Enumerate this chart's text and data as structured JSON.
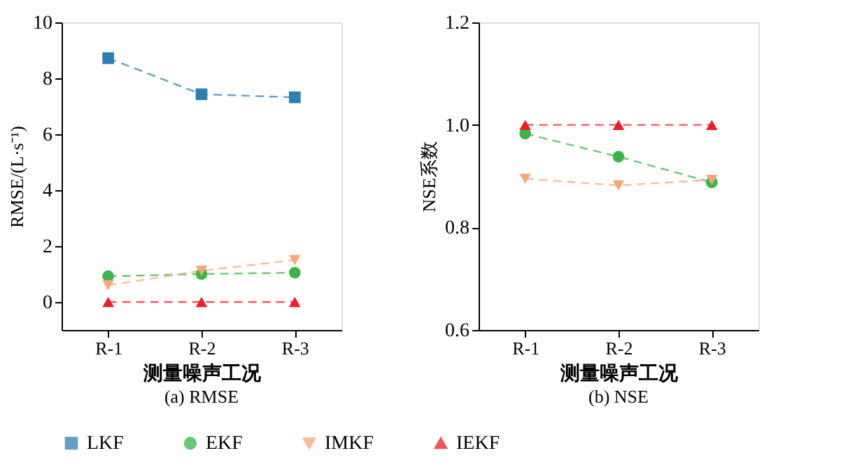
{
  "chart_data": [
    {
      "type": "line",
      "title": "(a) RMSE",
      "xlabel": "测量噪声工况",
      "ylabel": "RMSE/(L·s⁻¹)",
      "categories": [
        "R-1",
        "R-2",
        "R-3"
      ],
      "ylim": [
        -1,
        10
      ],
      "yticks": [
        0,
        2,
        4,
        6,
        8,
        10
      ],
      "grid": false,
      "legend": "bottom",
      "line_style": "dashed",
      "series": [
        {
          "name": "LKF",
          "color": "#2e7fb0",
          "marker": "square",
          "values": [
            8.72,
            7.43,
            7.32
          ]
        },
        {
          "name": "EKF",
          "color": "#3cb44a",
          "marker": "circle",
          "values": [
            0.92,
            1.0,
            1.05
          ]
        },
        {
          "name": "IMKF",
          "color": "#f7a57a",
          "marker": "triangle-down",
          "values": [
            0.6,
            1.12,
            1.5
          ]
        },
        {
          "name": "IEKF",
          "color": "#e8202a",
          "marker": "triangle-up",
          "values": [
            0,
            0,
            0
          ]
        }
      ]
    },
    {
      "type": "line",
      "title": "(b) NSE",
      "xlabel": "测量噪声工况",
      "ylabel": "NSE系数",
      "categories": [
        "R-1",
        "R-2",
        "R-3"
      ],
      "ylim": [
        0.6,
        1.2
      ],
      "yticks": [
        0.6,
        0.8,
        {
          "value": 1.0,
          "label": "1.0"
        },
        1.2
      ],
      "grid": false,
      "legend": "bottom",
      "line_style": "dashed",
      "series": [
        {
          "name": "LKF",
          "color": "#2e7fb0",
          "marker": "square",
          "values": [
            null,
            null,
            null
          ]
        },
        {
          "name": "EKF",
          "color": "#3cb44a",
          "marker": "circle",
          "values": [
            0.983,
            0.938,
            0.888
          ]
        },
        {
          "name": "IMKF",
          "color": "#f7a57a",
          "marker": "triangle-down",
          "values": [
            0.895,
            0.882,
            0.893
          ]
        },
        {
          "name": "IEKF",
          "color": "#e8202a",
          "marker": "triangle-up",
          "values": [
            1.0,
            1.0,
            1.0
          ]
        }
      ]
    }
  ]
}
